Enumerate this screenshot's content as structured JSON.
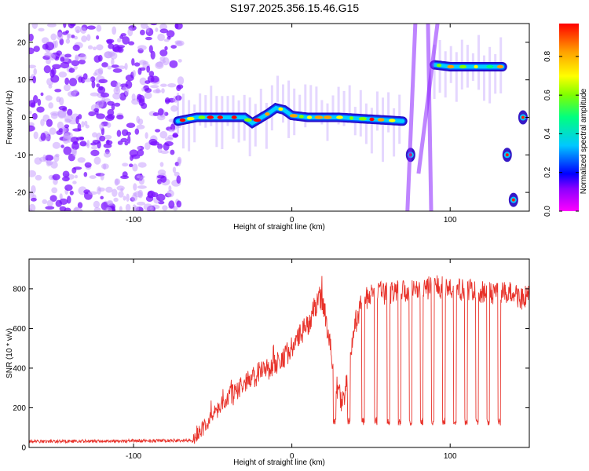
{
  "title": "S197.2025.356.15.46.G15",
  "colors": {
    "snr_line": "#e8322a",
    "rainbow": [
      "#ff00ff",
      "#8a00ff",
      "#0000ff",
      "#00c8ff",
      "#00ff80",
      "#80ff00",
      "#ffff00",
      "#ffa000",
      "#ff0000"
    ]
  },
  "chart_data": [
    {
      "type": "heatmap",
      "xlabel": "Height of straight line (km)",
      "ylabel": "Frequency (Hz)",
      "xlim": [
        -166,
        150
      ],
      "ylim": [
        -25,
        25
      ],
      "xticks": [
        -100,
        0,
        100
      ],
      "yticks": [
        -20,
        -10,
        0,
        10,
        20
      ],
      "colorbar": {
        "label": "Normalized spectral amplitude",
        "range": [
          0,
          0.97
        ],
        "ticks": [
          0.0,
          0.2,
          0.4,
          0.6,
          0.8
        ]
      },
      "features": [
        {
          "description_kind": "noise-region",
          "x": [
            -166,
            -70
          ],
          "y": [
            -25,
            25
          ]
        },
        {
          "description_kind": "ridge",
          "points": [
            [
              -72,
              -1
            ],
            [
              -60,
              0
            ],
            [
              -40,
              0
            ],
            [
              -30,
              0
            ],
            [
              -25,
              -1.5
            ],
            [
              -15,
              1
            ],
            [
              -10,
              2.5
            ],
            [
              -5,
              2
            ],
            [
              0,
              0.5
            ],
            [
              10,
              0
            ],
            [
              30,
              0
            ],
            [
              50,
              -0.5
            ],
            [
              70,
              -1
            ]
          ]
        },
        {
          "description_kind": "ridge",
          "points": [
            [
              90,
              14
            ],
            [
              100,
              13.5
            ],
            [
              110,
              13.5
            ],
            [
              130,
              13.5
            ],
            [
              133,
              13.5
            ]
          ]
        },
        {
          "description_kind": "blob",
          "points": [
            [
              75,
              -10
            ]
          ]
        },
        {
          "description_kind": "blob",
          "points": [
            [
              136,
              -10
            ]
          ]
        },
        {
          "description_kind": "blob",
          "points": [
            [
              140,
              -22
            ]
          ]
        },
        {
          "description_kind": "blob",
          "points": [
            [
              146,
              0
            ]
          ]
        }
      ]
    },
    {
      "type": "line",
      "xlabel": "Height of straight line (km)",
      "ylabel": "SNR (10 * v/v)",
      "xlim": [
        -166,
        150
      ],
      "ylim": [
        0,
        950
      ],
      "xticks": [
        -100,
        0,
        100
      ],
      "yticks": [
        0,
        200,
        400,
        600,
        800
      ],
      "envelope": {
        "x": [
          -166,
          -62,
          -60,
          -50,
          -40,
          -30,
          -20,
          -10,
          0,
          10,
          18,
          20,
          24,
          28,
          32,
          36,
          40,
          44,
          50,
          60,
          70,
          80,
          90,
          100,
          110,
          120,
          130,
          140,
          145,
          150
        ],
        "y": [
          30,
          35,
          60,
          160,
          250,
          320,
          380,
          420,
          500,
          620,
          760,
          720,
          520,
          320,
          220,
          380,
          620,
          730,
          770,
          780,
          790,
          800,
          810,
          800,
          790,
          780,
          770,
          780,
          750,
          760
        ]
      },
      "dropouts": {
        "x_centers": [
          27,
          36,
          45,
          53,
          61,
          68,
          75,
          82,
          89,
          96,
          103,
          110,
          117,
          124,
          131
        ],
        "level": 130
      }
    }
  ]
}
